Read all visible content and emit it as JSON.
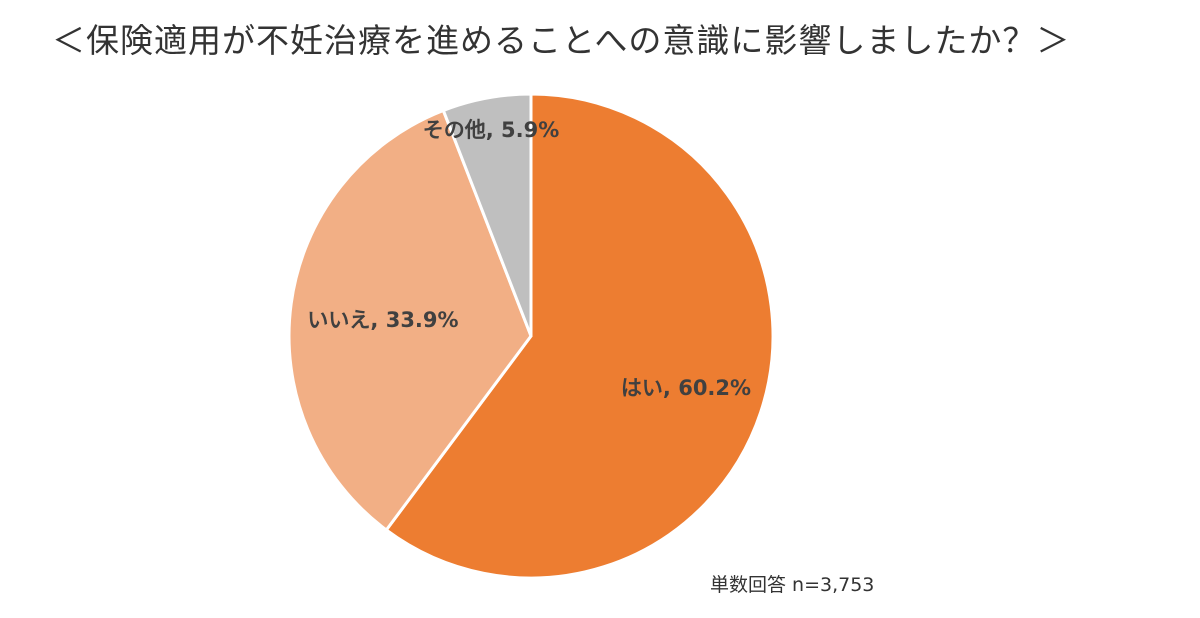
{
  "chart_data": {
    "type": "pie",
    "title": "＜保険適用が不妊治療を進めることへの意識に影響しましたか？＞",
    "slices": [
      {
        "label": "はい",
        "value": 60.2,
        "color": "#ED7D31",
        "display": "はい, 60.2%"
      },
      {
        "label": "いいえ",
        "value": 33.9,
        "color": "#F2AF85",
        "display": "いいえ, 33.9%"
      },
      {
        "label": "その他",
        "value": 5.9,
        "color": "#BFBFBF",
        "display": "その他, 5.9%"
      }
    ],
    "unit": "%",
    "note": "単数回答 n=3,753",
    "start_angle": "12 o'clock",
    "direction": "clockwise"
  }
}
